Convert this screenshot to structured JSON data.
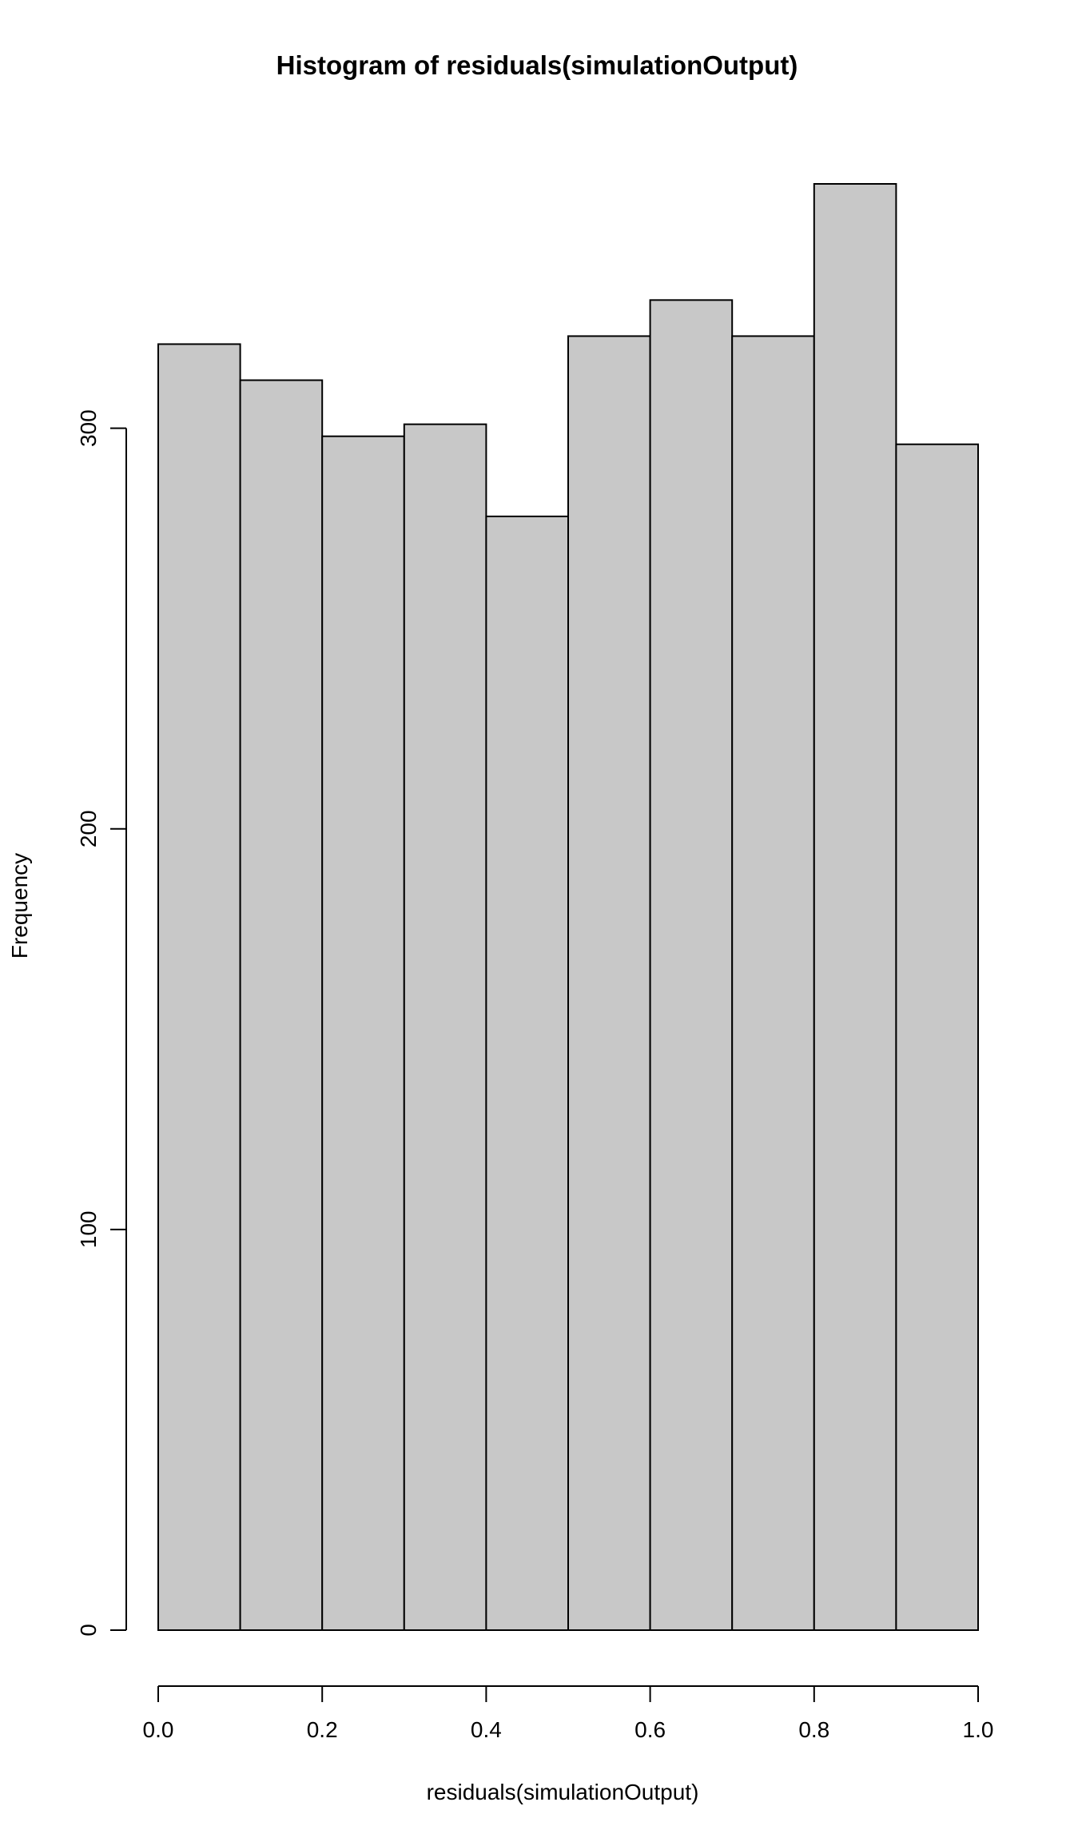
{
  "chart_data": {
    "type": "histogram",
    "title": "Histogram of residuals(simulationOutput)",
    "xlabel": "residuals(simulationOutput)",
    "ylabel": "Frequency",
    "bins": [
      {
        "start": 0.0,
        "end": 0.1,
        "count": 321
      },
      {
        "start": 0.1,
        "end": 0.2,
        "count": 312
      },
      {
        "start": 0.2,
        "end": 0.3,
        "count": 298
      },
      {
        "start": 0.3,
        "end": 0.4,
        "count": 301
      },
      {
        "start": 0.4,
        "end": 0.5,
        "count": 278
      },
      {
        "start": 0.5,
        "end": 0.6,
        "count": 323
      },
      {
        "start": 0.6,
        "end": 0.7,
        "count": 332
      },
      {
        "start": 0.7,
        "end": 0.8,
        "count": 323
      },
      {
        "start": 0.8,
        "end": 0.9,
        "count": 361
      },
      {
        "start": 0.9,
        "end": 1.0,
        "count": 296
      }
    ],
    "xlim": [
      0,
      1
    ],
    "ylim": [
      0,
      361
    ],
    "xticks": [
      0.0,
      0.2,
      0.4,
      0.6,
      0.8,
      1.0
    ],
    "xtick_labels": [
      "0.0",
      "0.2",
      "0.4",
      "0.6",
      "0.8",
      "1.0"
    ],
    "yticks": [
      0,
      100,
      200,
      300
    ],
    "ytick_labels": [
      "0",
      "100",
      "200",
      "300"
    ],
    "grid": false,
    "colors": {
      "bar_fill": "#c8c8c8",
      "bar_stroke": "#000000",
      "axis": "#000000"
    }
  }
}
